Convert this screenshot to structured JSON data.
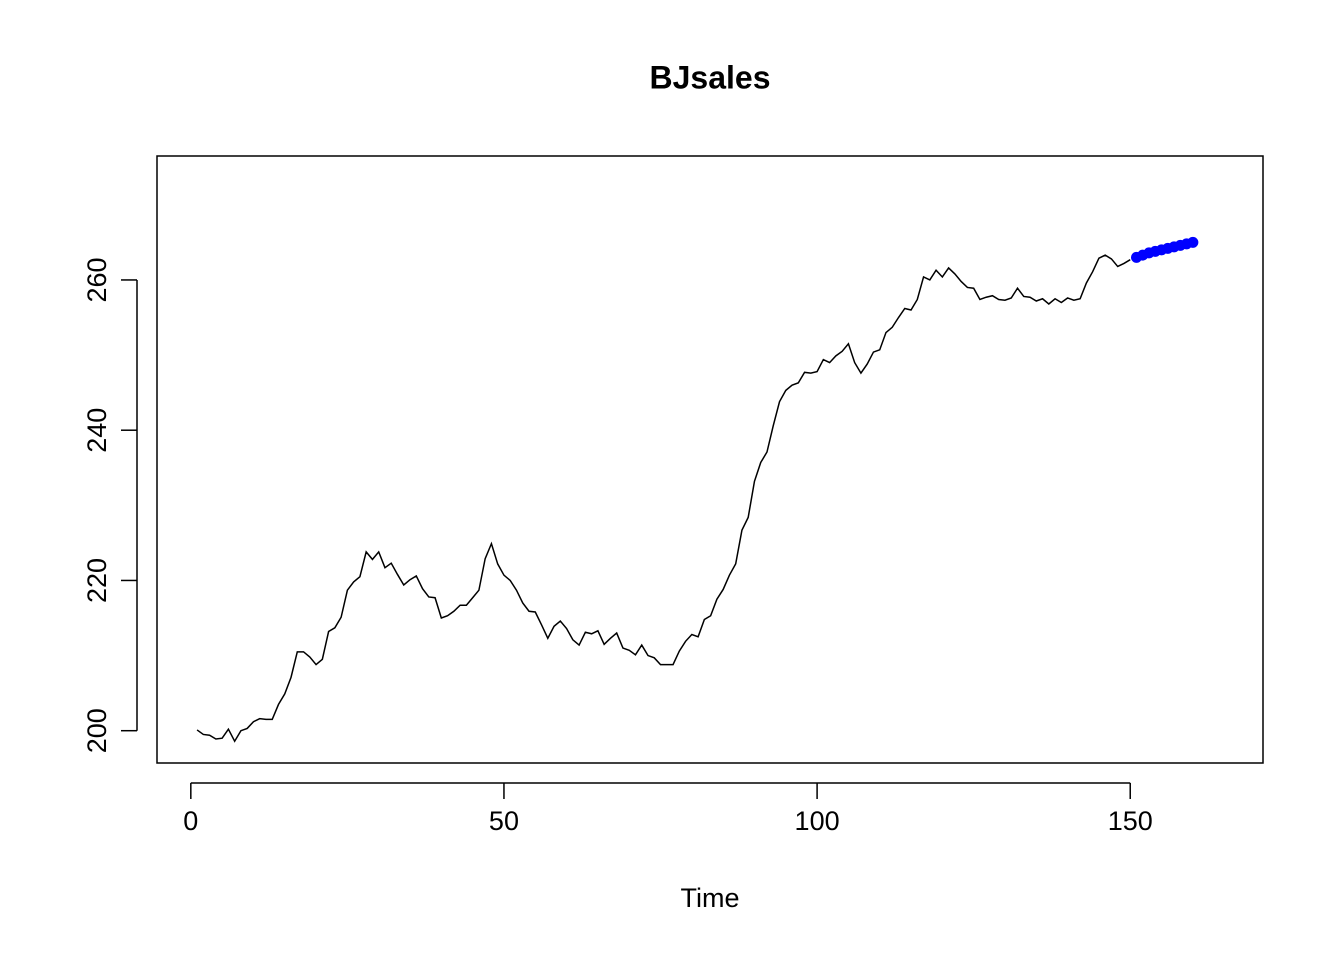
{
  "chart_data": {
    "type": "line",
    "title": "BJsales",
    "x_label": "Time",
    "xlim": [
      -5.4,
      171.2
    ],
    "ylim": [
      195.7,
      276.5
    ],
    "xticks": [
      0,
      50,
      100,
      150
    ],
    "yticks": [
      200,
      220,
      240,
      260
    ],
    "series": [
      {
        "color": "#000000",
        "style": "line",
        "x": [
          1,
          2,
          3,
          4,
          5,
          6,
          7,
          8,
          9,
          10,
          11,
          12,
          13,
          14,
          15,
          16,
          17,
          18,
          19,
          20,
          21,
          22,
          23,
          24,
          25,
          26,
          27,
          28,
          29,
          30,
          31,
          32,
          33,
          34,
          35,
          36,
          37,
          38,
          39,
          40,
          41,
          42,
          43,
          44,
          45,
          46,
          47,
          48,
          49,
          50,
          51,
          52,
          53,
          54,
          55,
          56,
          57,
          58,
          59,
          60,
          61,
          62,
          63,
          64,
          65,
          66,
          67,
          68,
          69,
          70,
          71,
          72,
          73,
          74,
          75,
          76,
          77,
          78,
          79,
          80,
          81,
          82,
          83,
          84,
          85,
          86,
          87,
          88,
          89,
          90,
          91,
          92,
          93,
          94,
          95,
          96,
          97,
          98,
          99,
          100,
          101,
          102,
          103,
          104,
          105,
          106,
          107,
          108,
          109,
          110,
          111,
          112,
          113,
          114,
          115,
          116,
          117,
          118,
          119,
          120,
          121,
          122,
          123,
          124,
          125,
          126,
          127,
          128,
          129,
          130,
          131,
          132,
          133,
          134,
          135,
          136,
          137,
          138,
          139,
          140,
          141,
          142,
          143,
          144,
          145,
          146,
          147,
          148,
          149,
          150
        ],
        "values": [
          200.1,
          199.5,
          199.4,
          198.9,
          199.0,
          200.2,
          198.6,
          200.0,
          200.3,
          201.2,
          201.6,
          201.5,
          201.5,
          203.5,
          204.9,
          207.1,
          210.5,
          210.5,
          209.8,
          208.8,
          209.5,
          213.2,
          213.7,
          215.1,
          218.7,
          219.8,
          220.5,
          223.8,
          222.8,
          223.8,
          221.7,
          222.3,
          220.8,
          219.4,
          220.1,
          220.6,
          218.9,
          217.8,
          217.7,
          215.0,
          215.3,
          215.9,
          216.7,
          216.7,
          217.7,
          218.7,
          222.9,
          224.9,
          222.2,
          220.7,
          220.0,
          218.7,
          217.0,
          215.9,
          215.8,
          214.1,
          212.3,
          213.9,
          214.6,
          213.6,
          212.1,
          211.4,
          213.1,
          212.9,
          213.3,
          211.5,
          212.3,
          213.0,
          211.0,
          210.7,
          210.1,
          211.4,
          210.0,
          209.7,
          208.8,
          208.8,
          208.8,
          210.6,
          211.9,
          212.8,
          212.5,
          214.8,
          215.3,
          217.5,
          218.8,
          220.7,
          222.2,
          226.7,
          228.4,
          233.2,
          235.7,
          237.1,
          240.6,
          243.8,
          245.3,
          246.0,
          246.3,
          247.7,
          247.6,
          247.8,
          249.4,
          249.0,
          249.9,
          250.5,
          251.5,
          249.0,
          247.6,
          248.8,
          250.4,
          250.7,
          253.0,
          253.7,
          255.0,
          256.2,
          256.0,
          257.4,
          260.4,
          260.0,
          261.3,
          260.4,
          261.6,
          260.8,
          259.8,
          259.0,
          258.9,
          257.4,
          257.7,
          257.9,
          257.4,
          257.3,
          257.6,
          258.9,
          257.8,
          257.7,
          257.2,
          257.5,
          256.8,
          257.5,
          257.0,
          257.6,
          257.3,
          257.5,
          259.6,
          261.1,
          262.9,
          263.3,
          262.8,
          261.8,
          262.2,
          262.7
        ]
      },
      {
        "color": "#0000ff",
        "style": "points",
        "x": [
          151,
          152,
          153,
          154,
          155,
          156,
          157,
          158,
          159,
          160
        ],
        "values": [
          263.0,
          263.3,
          263.6,
          263.8,
          264.0,
          264.2,
          264.4,
          264.6,
          264.8,
          265.0
        ]
      }
    ]
  }
}
